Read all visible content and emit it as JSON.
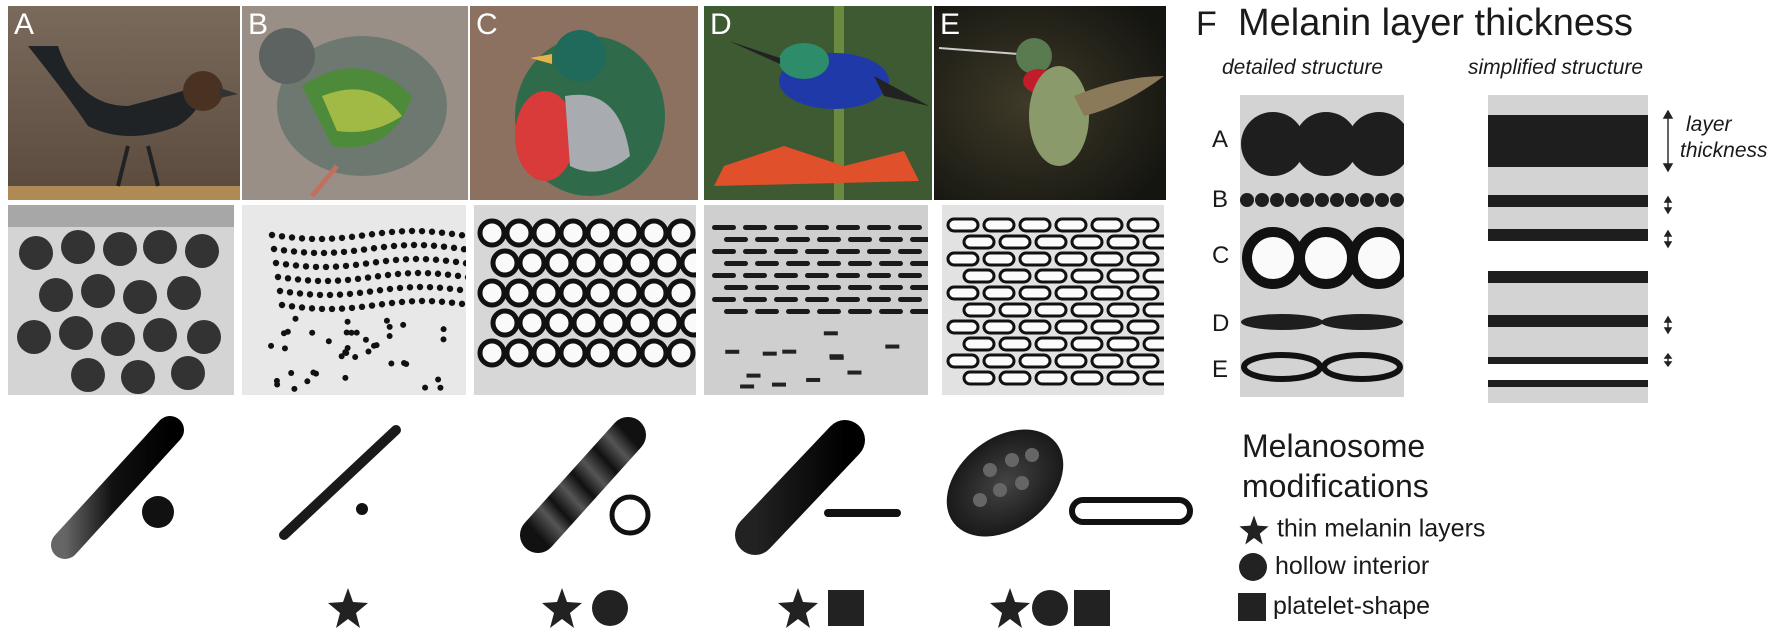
{
  "panels": [
    {
      "label": "A"
    },
    {
      "label": "B"
    },
    {
      "label": "C"
    },
    {
      "label": "D"
    },
    {
      "label": "E"
    }
  ],
  "panel_f": {
    "label": "F",
    "title": "Melanin layer thickness",
    "detailed_label": "detailed structure",
    "simplified_label": "simplified structure",
    "rows": [
      "A",
      "B",
      "C",
      "D",
      "E"
    ],
    "thickness_label_line1": "layer",
    "thickness_label_line2": "thickness"
  },
  "legend": {
    "title_line1": "Melanosome",
    "title_line2": "modifications",
    "items": [
      {
        "icon": "star-icon",
        "label": "thin melanin layers"
      },
      {
        "icon": "circle-icon",
        "label": "hollow interior"
      },
      {
        "icon": "square-icon",
        "label": "platelet-shape"
      }
    ]
  },
  "colors": {
    "melanin": "#1e1e1e",
    "tem_background": "#d4d4d4",
    "diagram_background": "#d3d3d3"
  }
}
